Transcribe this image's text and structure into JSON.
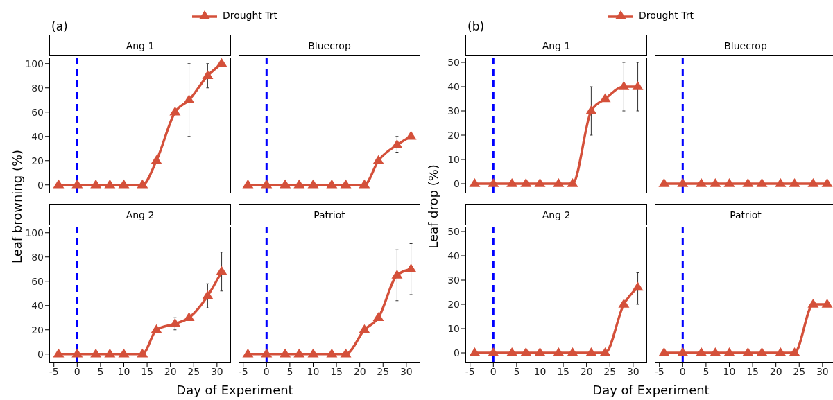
{
  "chart_data": [
    {
      "type": "line",
      "title": "Ang 1",
      "ylabel": "Leaf browning (%)",
      "annotations": [
        "(a)"
      ],
      "legend": "top",
      "tick_labels": "y",
      "marker": "triangle",
      "line_style": "solid",
      "xlim": [
        -6,
        33
      ],
      "xticks": [
        -5,
        0,
        5,
        10,
        15,
        20,
        25,
        30
      ],
      "ylim": [
        -7,
        105
      ],
      "yticks": [
        0,
        20,
        40,
        60,
        80,
        100
      ],
      "ref_lines": [
        {
          "axis": "x",
          "value": 0,
          "color": "#0000ff",
          "line_style": "dashed"
        }
      ],
      "x": [
        -4,
        0,
        4,
        7,
        10,
        14,
        17,
        21,
        24,
        28,
        31
      ],
      "series": [
        {
          "name": "Drought Trt",
          "color": "#d4503a",
          "values": [
            0,
            0,
            0,
            0,
            0,
            0,
            20,
            60,
            70,
            90,
            100
          ],
          "errors": [
            null,
            null,
            null,
            null,
            null,
            null,
            null,
            null,
            [
              40,
              100
            ],
            [
              80,
              100
            ],
            null
          ]
        }
      ]
    },
    {
      "type": "line",
      "title": "Bluecrop",
      "tick_labels": false,
      "marker": "triangle",
      "line_style": "solid",
      "xlim": [
        -6,
        33
      ],
      "xticks": [
        -5,
        0,
        5,
        10,
        15,
        20,
        25,
        30
      ],
      "ylim": [
        -7,
        105
      ],
      "yticks": [
        0,
        20,
        40,
        60,
        80,
        100
      ],
      "ref_lines": [
        {
          "axis": "x",
          "value": 0,
          "color": "#0000ff",
          "line_style": "dashed"
        }
      ],
      "x": [
        -4,
        0,
        4,
        7,
        10,
        14,
        17,
        21,
        24,
        28,
        31
      ],
      "series": [
        {
          "color": "#d4503a",
          "values": [
            0,
            0,
            0,
            0,
            0,
            0,
            0,
            0,
            20,
            33,
            40
          ],
          "errors": [
            null,
            null,
            null,
            null,
            null,
            null,
            null,
            null,
            null,
            [
              27,
              40
            ],
            null
          ]
        }
      ]
    },
    {
      "type": "line",
      "title": "Ang 2",
      "xlabel": "Day of Experiment",
      "marker": "triangle",
      "line_style": "solid",
      "xlim": [
        -6,
        33
      ],
      "xticks": [
        -5,
        0,
        5,
        10,
        15,
        20,
        25,
        30
      ],
      "ylim": [
        -7,
        105
      ],
      "yticks": [
        0,
        20,
        40,
        60,
        80,
        100
      ],
      "ref_lines": [
        {
          "axis": "x",
          "value": 0,
          "color": "#0000ff",
          "line_style": "dashed"
        }
      ],
      "x": [
        -4,
        0,
        4,
        7,
        10,
        14,
        17,
        21,
        24,
        28,
        31
      ],
      "series": [
        {
          "color": "#d4503a",
          "values": [
            0,
            0,
            0,
            0,
            0,
            0,
            20,
            25,
            30,
            48,
            68
          ],
          "errors": [
            null,
            null,
            null,
            null,
            null,
            null,
            null,
            [
              20,
              30
            ],
            null,
            [
              38,
              58
            ],
            [
              52,
              84
            ]
          ]
        }
      ]
    },
    {
      "type": "line",
      "title": "Patriot",
      "tick_labels": "x",
      "marker": "triangle",
      "line_style": "solid",
      "xlim": [
        -6,
        33
      ],
      "xticks": [
        -5,
        0,
        5,
        10,
        15,
        20,
        25,
        30
      ],
      "ylim": [
        -7,
        105
      ],
      "yticks": [
        0,
        20,
        40,
        60,
        80,
        100
      ],
      "ref_lines": [
        {
          "axis": "x",
          "value": 0,
          "color": "#0000ff",
          "line_style": "dashed"
        }
      ],
      "x": [
        -4,
        0,
        4,
        7,
        10,
        14,
        17,
        21,
        24,
        28,
        31
      ],
      "series": [
        {
          "color": "#d4503a",
          "values": [
            0,
            0,
            0,
            0,
            0,
            0,
            0,
            20,
            30,
            65,
            70
          ],
          "errors": [
            null,
            null,
            null,
            null,
            null,
            null,
            null,
            null,
            null,
            [
              44,
              86
            ],
            [
              49,
              91
            ]
          ]
        }
      ]
    },
    {
      "type": "line",
      "title": "Ang 1",
      "ylabel": "Leaf drop (%)",
      "annotations": [
        "(b)"
      ],
      "legend": "top",
      "tick_labels": "y",
      "marker": "triangle",
      "line_style": "solid",
      "xlim": [
        -6,
        33
      ],
      "xticks": [
        -5,
        0,
        5,
        10,
        15,
        20,
        25,
        30
      ],
      "ylim": [
        -4,
        52
      ],
      "yticks": [
        0,
        10,
        20,
        30,
        40,
        50
      ],
      "ref_lines": [
        {
          "axis": "x",
          "value": 0,
          "color": "#0000ff",
          "line_style": "dashed"
        }
      ],
      "x": [
        -4,
        0,
        4,
        7,
        10,
        14,
        17,
        21,
        24,
        28,
        31
      ],
      "series": [
        {
          "name": "Drought Trt",
          "color": "#d4503a",
          "values": [
            0,
            0,
            0,
            0,
            0,
            0,
            0,
            30,
            35,
            40,
            40
          ],
          "errors": [
            null,
            null,
            null,
            null,
            null,
            null,
            null,
            [
              20,
              40
            ],
            null,
            [
              30,
              50
            ],
            [
              30,
              50
            ]
          ]
        }
      ]
    },
    {
      "type": "line",
      "title": "Bluecrop",
      "tick_labels": false,
      "marker": "triangle",
      "line_style": "solid",
      "xlim": [
        -6,
        33
      ],
      "xticks": [
        -5,
        0,
        5,
        10,
        15,
        20,
        25,
        30
      ],
      "ylim": [
        -4,
        52
      ],
      "yticks": [
        0,
        10,
        20,
        30,
        40,
        50
      ],
      "ref_lines": [
        {
          "axis": "x",
          "value": 0,
          "color": "#0000ff",
          "line_style": "dashed"
        }
      ],
      "x": [
        -4,
        0,
        4,
        7,
        10,
        14,
        17,
        21,
        24,
        28,
        31
      ],
      "series": [
        {
          "color": "#d4503a",
          "values": [
            0,
            0,
            0,
            0,
            0,
            0,
            0,
            0,
            0,
            0,
            0
          ]
        }
      ]
    },
    {
      "type": "line",
      "title": "Ang 2",
      "xlabel": "Day of Experiment",
      "marker": "triangle",
      "line_style": "solid",
      "xlim": [
        -6,
        33
      ],
      "xticks": [
        -5,
        0,
        5,
        10,
        15,
        20,
        25,
        30
      ],
      "ylim": [
        -4,
        52
      ],
      "yticks": [
        0,
        10,
        20,
        30,
        40,
        50
      ],
      "ref_lines": [
        {
          "axis": "x",
          "value": 0,
          "color": "#0000ff",
          "line_style": "dashed"
        }
      ],
      "x": [
        -4,
        0,
        4,
        7,
        10,
        14,
        17,
        21,
        24,
        28,
        31
      ],
      "series": [
        {
          "color": "#d4503a",
          "values": [
            0,
            0,
            0,
            0,
            0,
            0,
            0,
            0,
            0,
            20,
            27
          ],
          "errors": [
            null,
            null,
            null,
            null,
            null,
            null,
            null,
            null,
            null,
            null,
            [
              20,
              33
            ]
          ]
        }
      ]
    },
    {
      "type": "line",
      "title": "Patriot",
      "tick_labels": "x",
      "marker": "triangle",
      "line_style": "solid",
      "xlim": [
        -6,
        33
      ],
      "xticks": [
        -5,
        0,
        5,
        10,
        15,
        20,
        25,
        30
      ],
      "ylim": [
        -4,
        52
      ],
      "yticks": [
        0,
        10,
        20,
        30,
        40,
        50
      ],
      "ref_lines": [
        {
          "axis": "x",
          "value": 0,
          "color": "#0000ff",
          "line_style": "dashed"
        }
      ],
      "x": [
        -4,
        0,
        4,
        7,
        10,
        14,
        17,
        21,
        24,
        28,
        31
      ],
      "series": [
        {
          "color": "#d4503a",
          "values": [
            0,
            0,
            0,
            0,
            0,
            0,
            0,
            0,
            0,
            20,
            20
          ]
        }
      ]
    }
  ]
}
